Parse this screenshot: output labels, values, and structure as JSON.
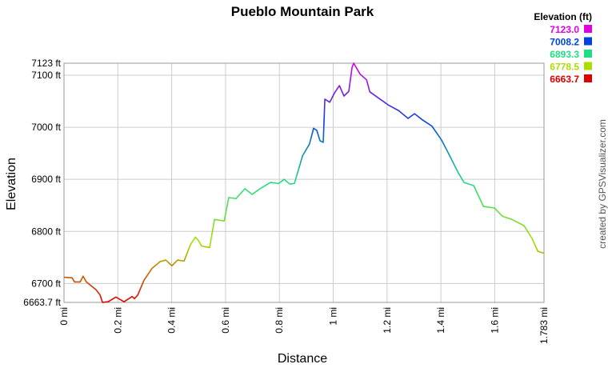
{
  "chart_data": {
    "type": "line",
    "title": "Pueblo Mountain Park",
    "xlabel": "Distance",
    "ylabel": "Elevation",
    "credit": "created by GPSVisualizer.com",
    "legend_title": "Elevation (ft)",
    "color_scale": [
      {
        "value": 7123.0,
        "label": "7123.0",
        "color": "#e000e0"
      },
      {
        "value": 7008.2,
        "label": "7008.2",
        "color": "#0044dd"
      },
      {
        "value": 6893.3,
        "label": "6893.3",
        "color": "#22dd88"
      },
      {
        "value": 6778.5,
        "label": "6778.5",
        "color": "#aadd00"
      },
      {
        "value": 6663.7,
        "label": "6663.7",
        "color": "#dd0000"
      }
    ],
    "xlim": [
      0,
      1.783
    ],
    "ylim": [
      6663.7,
      7123
    ],
    "xticks": [
      {
        "value": 0,
        "label": "0 mi"
      },
      {
        "value": 0.2,
        "label": "0.2 mi"
      },
      {
        "value": 0.4,
        "label": "0.4 mi"
      },
      {
        "value": 0.6,
        "label": "0.6 mi"
      },
      {
        "value": 0.8,
        "label": "0.8 mi"
      },
      {
        "value": 1,
        "label": "1 mi"
      },
      {
        "value": 1.2,
        "label": "1.2 mi"
      },
      {
        "value": 1.4,
        "label": "1.4 mi"
      },
      {
        "value": 1.6,
        "label": "1.6 mi"
      },
      {
        "value": 1.783,
        "label": "1.783 mi"
      }
    ],
    "yticks": [
      {
        "value": 6663.7,
        "label": "6663.7 ft"
      },
      {
        "value": 6700,
        "label": "6700 ft"
      },
      {
        "value": 6800,
        "label": "6800 ft"
      },
      {
        "value": 6900,
        "label": "6900 ft"
      },
      {
        "value": 7000,
        "label": "7000 ft"
      },
      {
        "value": 7100,
        "label": "7100 ft"
      },
      {
        "value": 7123,
        "label": "7123 ft"
      }
    ],
    "grid": true,
    "x": [
      0,
      0.03,
      0.039,
      0.06,
      0.071,
      0.083,
      0.119,
      0.134,
      0.143,
      0.164,
      0.193,
      0.223,
      0.253,
      0.262,
      0.274,
      0.297,
      0.327,
      0.357,
      0.378,
      0.401,
      0.422,
      0.446,
      0.47,
      0.488,
      0.499,
      0.511,
      0.541,
      0.559,
      0.595,
      0.612,
      0.639,
      0.672,
      0.699,
      0.728,
      0.767,
      0.797,
      0.818,
      0.838,
      0.856,
      0.886,
      0.912,
      0.927,
      0.939,
      0.951,
      0.963,
      0.969,
      0.987,
      1.005,
      1.023,
      1.04,
      1.058,
      1.07,
      1.076,
      1.1,
      1.124,
      1.136,
      1.174,
      1.207,
      1.243,
      1.278,
      1.302,
      1.332,
      1.367,
      1.403,
      1.433,
      1.463,
      1.486,
      1.522,
      1.54,
      1.558,
      1.599,
      1.629,
      1.664,
      1.709,
      1.739,
      1.76,
      1.783
    ],
    "values": [
      6712,
      6711,
      6703,
      6703,
      6714,
      6703,
      6688,
      6678,
      6663.7,
      6665,
      6674,
      6665,
      6675,
      6671,
      6678,
      6706,
      6729,
      6742,
      6745,
      6734,
      6745,
      6743,
      6775,
      6789,
      6783,
      6772,
      6769,
      6823,
      6820,
      6865,
      6863,
      6882,
      6871,
      6882,
      6894,
      6892,
      6900,
      6891,
      6892,
      6945,
      6968,
      6998,
      6994,
      6974,
      6971,
      7054,
      7048,
      7066,
      7080,
      7060,
      7069,
      7115,
      7123,
      7102,
      7091,
      7068,
      7054,
      7042,
      7032,
      7017,
      7026,
      7014,
      7002,
      6975,
      6945,
      6914,
      6894,
      6888,
      6868,
      6848,
      6845,
      6829,
      6823,
      6811,
      6786,
      6762,
      6758
    ]
  }
}
